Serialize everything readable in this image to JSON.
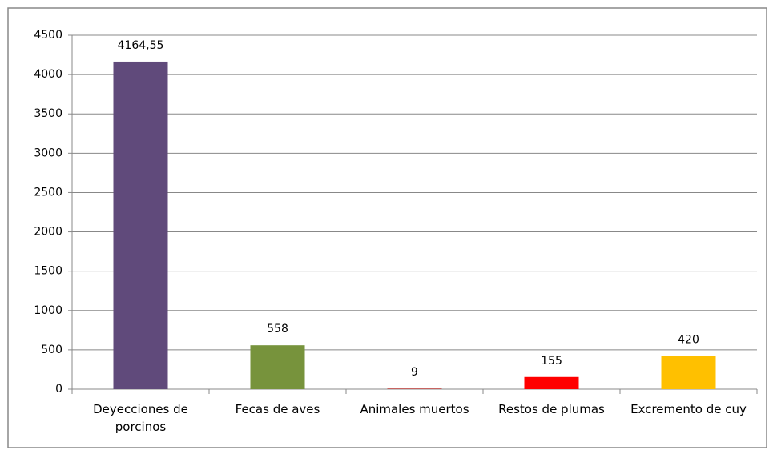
{
  "chart_data": {
    "type": "bar",
    "categories": [
      "Deyecciones de porcinos",
      "Fecas de aves",
      "Animales muertos",
      "Restos de plumas",
      "Excremento de cuy"
    ],
    "values": [
      4164.55,
      558,
      9,
      155,
      420
    ],
    "value_labels": [
      "4164,55",
      "558",
      "9",
      "155",
      "420"
    ],
    "colors": [
      "#604a7b",
      "#77933c",
      "#c0504d",
      "#ff0000",
      "#ffc000"
    ],
    "ylim": [
      0,
      4500
    ],
    "yticks": [
      0,
      500,
      1000,
      1500,
      2000,
      2500,
      3000,
      3500,
      4000,
      4500
    ],
    "grid": true
  }
}
